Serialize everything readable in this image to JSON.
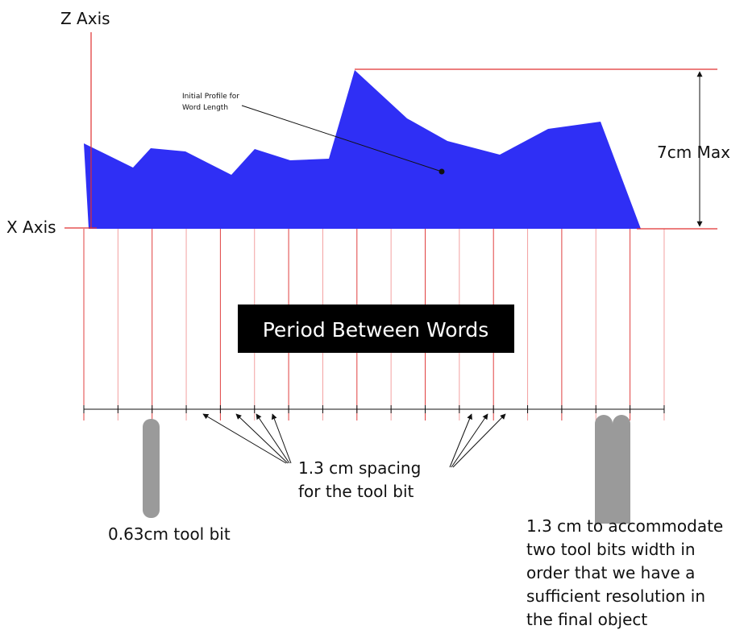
{
  "axes": {
    "z_label": "Z Axis",
    "x_label": "X Axis",
    "max_label": "7cm Max"
  },
  "profile": {
    "label": [
      "Initial Profile for",
      "Word Length"
    ]
  },
  "period_box": "Period Between Words",
  "spacing_note": [
    "1.3 cm spacing",
    "for the tool bit"
  ],
  "tool_bit_note": "0.63cm tool bit",
  "double_bit_note": [
    "1.3 cm to accommodate",
    "two tool bits width in",
    "order that we have a",
    "sufficient resolution in",
    "the final object"
  ]
}
